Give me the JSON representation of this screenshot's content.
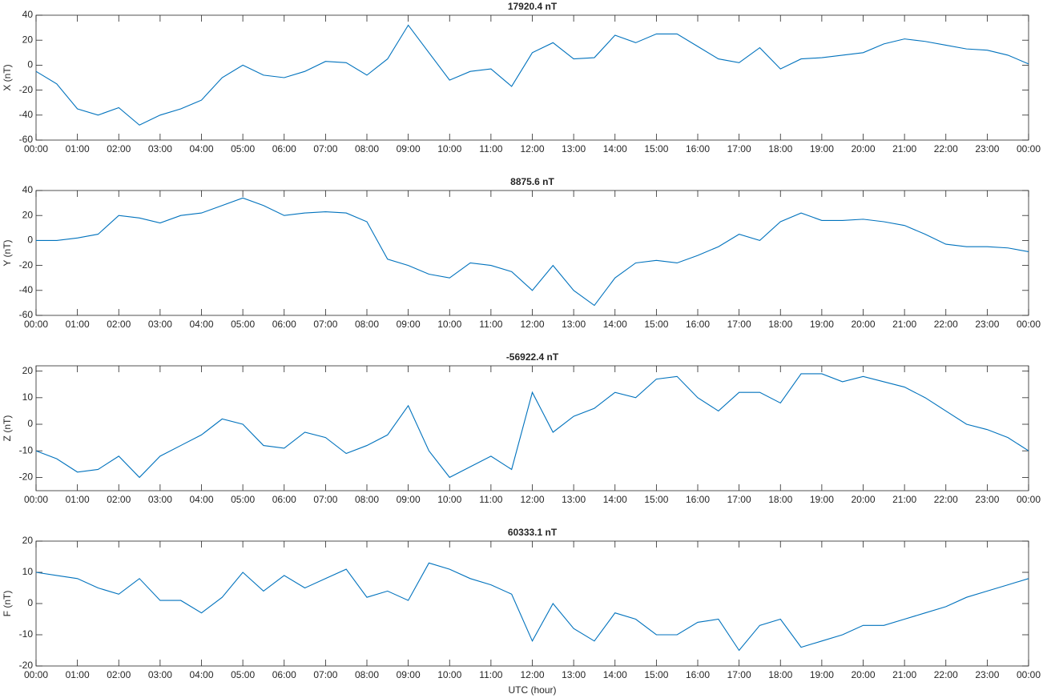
{
  "chart_data": [
    {
      "type": "line",
      "title": "17920.4 nT",
      "ylabel": "X (nT)",
      "color": "#0072bd",
      "x": [
        0,
        0.5,
        1,
        1.5,
        2,
        2.5,
        3,
        3.5,
        4,
        4.5,
        5,
        5.5,
        6,
        6.5,
        7,
        7.5,
        8,
        8.5,
        9,
        9.5,
        10,
        10.5,
        11,
        11.5,
        12,
        12.5,
        13,
        13.5,
        14,
        14.5,
        15,
        15.5,
        16,
        16.5,
        17,
        17.5,
        18,
        18.5,
        19,
        19.5,
        20,
        20.5,
        21,
        21.5,
        22,
        22.5,
        23,
        23.5,
        24
      ],
      "values": [
        -5,
        -15,
        -35,
        -40,
        -34,
        -48,
        -40,
        -35,
        -28,
        -10,
        0,
        -8,
        -10,
        -5,
        3,
        2,
        -8,
        5,
        32,
        10,
        -12,
        -5,
        -3,
        -17,
        10,
        18,
        5,
        6,
        24,
        18,
        25,
        25,
        15,
        5,
        2,
        14,
        -3,
        5,
        6,
        8,
        10,
        17,
        21,
        19,
        16,
        13,
        12,
        8,
        1
      ],
      "xlim": [
        0,
        24
      ],
      "ylim": [
        -60,
        40
      ],
      "yticks": [
        -60,
        -40,
        -20,
        0,
        20,
        40
      ],
      "xticks": [
        {
          "value": 0,
          "label": "00:00"
        },
        {
          "value": 1,
          "label": "01:00"
        },
        {
          "value": 2,
          "label": "02:00"
        },
        {
          "value": 3,
          "label": "03:00"
        },
        {
          "value": 4,
          "label": "04:00"
        },
        {
          "value": 5,
          "label": "05:00"
        },
        {
          "value": 6,
          "label": "06:00"
        },
        {
          "value": 7,
          "label": "07:00"
        },
        {
          "value": 8,
          "label": "08:00"
        },
        {
          "value": 9,
          "label": "09:00"
        },
        {
          "value": 10,
          "label": "10:00"
        },
        {
          "value": 11,
          "label": "11:00"
        },
        {
          "value": 12,
          "label": "12:00"
        },
        {
          "value": 13,
          "label": "13:00"
        },
        {
          "value": 14,
          "label": "14:00"
        },
        {
          "value": 15,
          "label": "15:00"
        },
        {
          "value": 16,
          "label": "16:00"
        },
        {
          "value": 17,
          "label": "17:00"
        },
        {
          "value": 18,
          "label": "18:00"
        },
        {
          "value": 19,
          "label": "19:00"
        },
        {
          "value": 20,
          "label": "20:00"
        },
        {
          "value": 21,
          "label": "21:00"
        },
        {
          "value": 22,
          "label": "22:00"
        },
        {
          "value": 23,
          "label": "23:00"
        },
        {
          "value": 24,
          "label": "00:00"
        }
      ]
    },
    {
      "type": "line",
      "title": "8875.6 nT",
      "ylabel": "Y (nT)",
      "color": "#0072bd",
      "x": [
        0,
        0.5,
        1,
        1.5,
        2,
        2.5,
        3,
        3.5,
        4,
        4.5,
        5,
        5.5,
        6,
        6.5,
        7,
        7.5,
        8,
        8.5,
        9,
        9.5,
        10,
        10.5,
        11,
        11.5,
        12,
        12.5,
        13,
        13.5,
        14,
        14.5,
        15,
        15.5,
        16,
        16.5,
        17,
        17.5,
        18,
        18.5,
        19,
        19.5,
        20,
        20.5,
        21,
        21.5,
        22,
        22.5,
        23,
        23.5,
        24
      ],
      "values": [
        0,
        0,
        2,
        5,
        20,
        18,
        14,
        20,
        22,
        28,
        34,
        28,
        20,
        22,
        23,
        22,
        15,
        -15,
        -20,
        -27,
        -30,
        -18,
        -20,
        -25,
        -40,
        -20,
        -40,
        -52,
        -30,
        -18,
        -16,
        -18,
        -12,
        -5,
        5,
        0,
        15,
        22,
        16,
        16,
        17,
        15,
        12,
        5,
        -3,
        -5,
        -5,
        -6,
        -9
      ],
      "xlim": [
        0,
        24
      ],
      "ylim": [
        -60,
        40
      ],
      "yticks": [
        -60,
        -40,
        -20,
        0,
        20,
        40
      ],
      "xticks": [
        {
          "value": 0,
          "label": "00:00"
        },
        {
          "value": 1,
          "label": "01:00"
        },
        {
          "value": 2,
          "label": "02:00"
        },
        {
          "value": 3,
          "label": "03:00"
        },
        {
          "value": 4,
          "label": "04:00"
        },
        {
          "value": 5,
          "label": "05:00"
        },
        {
          "value": 6,
          "label": "06:00"
        },
        {
          "value": 7,
          "label": "07:00"
        },
        {
          "value": 8,
          "label": "08:00"
        },
        {
          "value": 9,
          "label": "09:00"
        },
        {
          "value": 10,
          "label": "10:00"
        },
        {
          "value": 11,
          "label": "11:00"
        },
        {
          "value": 12,
          "label": "12:00"
        },
        {
          "value": 13,
          "label": "13:00"
        },
        {
          "value": 14,
          "label": "14:00"
        },
        {
          "value": 15,
          "label": "15:00"
        },
        {
          "value": 16,
          "label": "16:00"
        },
        {
          "value": 17,
          "label": "17:00"
        },
        {
          "value": 18,
          "label": "18:00"
        },
        {
          "value": 19,
          "label": "19:00"
        },
        {
          "value": 20,
          "label": "20:00"
        },
        {
          "value": 21,
          "label": "21:00"
        },
        {
          "value": 22,
          "label": "22:00"
        },
        {
          "value": 23,
          "label": "23:00"
        },
        {
          "value": 24,
          "label": "00:00"
        }
      ]
    },
    {
      "type": "line",
      "title": "-56922.4 nT",
      "ylabel": "Z (nT)",
      "color": "#0072bd",
      "x": [
        0,
        0.5,
        1,
        1.5,
        2,
        2.5,
        3,
        3.5,
        4,
        4.5,
        5,
        5.5,
        6,
        6.5,
        7,
        7.5,
        8,
        8.5,
        9,
        9.5,
        10,
        10.5,
        11,
        11.5,
        12,
        12.5,
        13,
        13.5,
        14,
        14.5,
        15,
        15.5,
        16,
        16.5,
        17,
        17.5,
        18,
        18.5,
        19,
        19.5,
        20,
        20.5,
        21,
        21.5,
        22,
        22.5,
        23,
        23.5,
        24
      ],
      "values": [
        -10,
        -13,
        -18,
        -17,
        -12,
        -20,
        -12,
        -8,
        -4,
        2,
        0,
        -8,
        -9,
        -3,
        -5,
        -11,
        -8,
        -4,
        7,
        -10,
        -20,
        -16,
        -12,
        -17,
        12,
        -3,
        3,
        6,
        12,
        10,
        17,
        18,
        10,
        5,
        12,
        12,
        8,
        19,
        19,
        16,
        18,
        16,
        14,
        10,
        5,
        0,
        -2,
        -5,
        -10
      ],
      "xlim": [
        0,
        24
      ],
      "ylim": [
        -25,
        22
      ],
      "yticks": [
        -20,
        -10,
        0,
        10,
        20
      ],
      "xticks": [
        {
          "value": 0,
          "label": "00:00"
        },
        {
          "value": 1,
          "label": "01:00"
        },
        {
          "value": 2,
          "label": "02:00"
        },
        {
          "value": 3,
          "label": "03:00"
        },
        {
          "value": 4,
          "label": "04:00"
        },
        {
          "value": 5,
          "label": "05:00"
        },
        {
          "value": 6,
          "label": "06:00"
        },
        {
          "value": 7,
          "label": "07:00"
        },
        {
          "value": 8,
          "label": "08:00"
        },
        {
          "value": 9,
          "label": "09:00"
        },
        {
          "value": 10,
          "label": "10:00"
        },
        {
          "value": 11,
          "label": "11:00"
        },
        {
          "value": 12,
          "label": "12:00"
        },
        {
          "value": 13,
          "label": "13:00"
        },
        {
          "value": 14,
          "label": "14:00"
        },
        {
          "value": 15,
          "label": "15:00"
        },
        {
          "value": 16,
          "label": "16:00"
        },
        {
          "value": 17,
          "label": "17:00"
        },
        {
          "value": 18,
          "label": "18:00"
        },
        {
          "value": 19,
          "label": "19:00"
        },
        {
          "value": 20,
          "label": "20:00"
        },
        {
          "value": 21,
          "label": "21:00"
        },
        {
          "value": 22,
          "label": "22:00"
        },
        {
          "value": 23,
          "label": "23:00"
        },
        {
          "value": 24,
          "label": "00:00"
        }
      ]
    },
    {
      "type": "line",
      "title": "60333.1 nT",
      "ylabel": "F (nT)",
      "xlabel": "UTC (hour)",
      "color": "#0072bd",
      "x": [
        0,
        0.5,
        1,
        1.5,
        2,
        2.5,
        3,
        3.5,
        4,
        4.5,
        5,
        5.5,
        6,
        6.5,
        7,
        7.5,
        8,
        8.5,
        9,
        9.5,
        10,
        10.5,
        11,
        11.5,
        12,
        12.5,
        13,
        13.5,
        14,
        14.5,
        15,
        15.5,
        16,
        16.5,
        17,
        17.5,
        18,
        18.5,
        19,
        19.5,
        20,
        20.5,
        21,
        21.5,
        22,
        22.5,
        23,
        23.5,
        24
      ],
      "values": [
        10,
        9,
        8,
        5,
        3,
        8,
        1,
        1,
        -3,
        2,
        10,
        4,
        9,
        5,
        8,
        11,
        2,
        4,
        1,
        13,
        11,
        8,
        6,
        3,
        -12,
        0,
        -8,
        -12,
        -3,
        -5,
        -10,
        -10,
        -6,
        -5,
        -15,
        -7,
        -5,
        -14,
        -12,
        -10,
        -7,
        -7,
        -5,
        -3,
        -1,
        2,
        4,
        6,
        8
      ],
      "xlim": [
        0,
        24
      ],
      "ylim": [
        -20,
        20
      ],
      "yticks": [
        -20,
        -10,
        0,
        10,
        20
      ],
      "xticks": [
        {
          "value": 0,
          "label": "00:00"
        },
        {
          "value": 1,
          "label": "01:00"
        },
        {
          "value": 2,
          "label": "02:00"
        },
        {
          "value": 3,
          "label": "03:00"
        },
        {
          "value": 4,
          "label": "04:00"
        },
        {
          "value": 5,
          "label": "05:00"
        },
        {
          "value": 6,
          "label": "06:00"
        },
        {
          "value": 7,
          "label": "07:00"
        },
        {
          "value": 8,
          "label": "08:00"
        },
        {
          "value": 9,
          "label": "09:00"
        },
        {
          "value": 10,
          "label": "10:00"
        },
        {
          "value": 11,
          "label": "11:00"
        },
        {
          "value": 12,
          "label": "12:00"
        },
        {
          "value": 13,
          "label": "13:00"
        },
        {
          "value": 14,
          "label": "14:00"
        },
        {
          "value": 15,
          "label": "15:00"
        },
        {
          "value": 16,
          "label": "16:00"
        },
        {
          "value": 17,
          "label": "17:00"
        },
        {
          "value": 18,
          "label": "18:00"
        },
        {
          "value": 19,
          "label": "19:00"
        },
        {
          "value": 20,
          "label": "20:00"
        },
        {
          "value": 21,
          "label": "21:00"
        },
        {
          "value": 22,
          "label": "22:00"
        },
        {
          "value": 23,
          "label": "23:00"
        },
        {
          "value": 24,
          "label": "00:00"
        }
      ]
    }
  ]
}
